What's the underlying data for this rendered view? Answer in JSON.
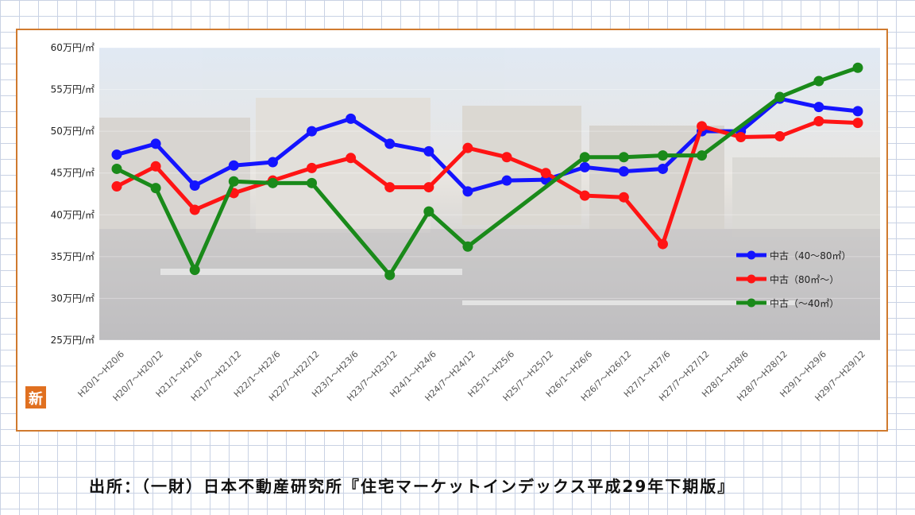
{
  "chart_data": {
    "type": "line",
    "title": "",
    "xlabel": "",
    "ylabel": "",
    "ylim": [
      25,
      60
    ],
    "y_ticks": [
      60,
      55,
      50,
      45,
      40,
      35,
      30,
      25
    ],
    "y_tick_labels": [
      "60万円/㎡",
      "55万円/㎡",
      "50万円/㎡",
      "45万円/㎡",
      "40万円/㎡",
      "35万円/㎡",
      "30万円/㎡",
      "25万円/㎡"
    ],
    "categories": [
      "H20/1～H20/6",
      "H20/7～H20/12",
      "H21/1～H21/6",
      "H21/7～H21/12",
      "H22/1～H22/6",
      "H22/7～H22/12",
      "H23/1～H23/6",
      "H23/7～H23/12",
      "H24/1～H24/6",
      "H24/7～H24/12",
      "H25/1～H25/6",
      "H25/7～H25/12",
      "H26/1～H26/6",
      "H26/7～H26/12",
      "H27/1～H27/6",
      "H27/7～H27/12",
      "H28/1～H28/6",
      "H28/7～H28/12",
      "H29/1～H29/6",
      "H29/7～H29/12"
    ],
    "legend_position": "right",
    "series": [
      {
        "name": "中古（40～80㎡）",
        "color": "#1414ff",
        "values": [
          47.2,
          48.5,
          43.5,
          45.9,
          46.3,
          50.0,
          51.5,
          48.5,
          47.6,
          42.8,
          44.1,
          44.2,
          45.7,
          45.2,
          45.5,
          50.0,
          50.0,
          53.9,
          52.9,
          52.4
        ]
      },
      {
        "name": "中古（80㎡～）",
        "color": "#ff1414",
        "values": [
          43.4,
          45.8,
          40.6,
          42.6,
          44.1,
          45.6,
          46.8,
          43.3,
          43.3,
          48.0,
          46.9,
          45.0,
          42.3,
          42.1,
          36.5,
          50.6,
          49.3,
          49.4,
          51.2,
          51.0
        ]
      },
      {
        "name": "中古（～40㎡）",
        "color": "#1a8a1a",
        "values": [
          45.5,
          43.2,
          33.4,
          44.0,
          43.8,
          43.8,
          null,
          32.8,
          40.4,
          36.2,
          null,
          null,
          46.9,
          46.9,
          47.1,
          47.1,
          null,
          54.1,
          56.0,
          57.6
        ]
      }
    ]
  },
  "badge": "新",
  "source_text": "出所：（一財）日本不動産研究所『住宅マーケットインデックス平成29年下期版』"
}
